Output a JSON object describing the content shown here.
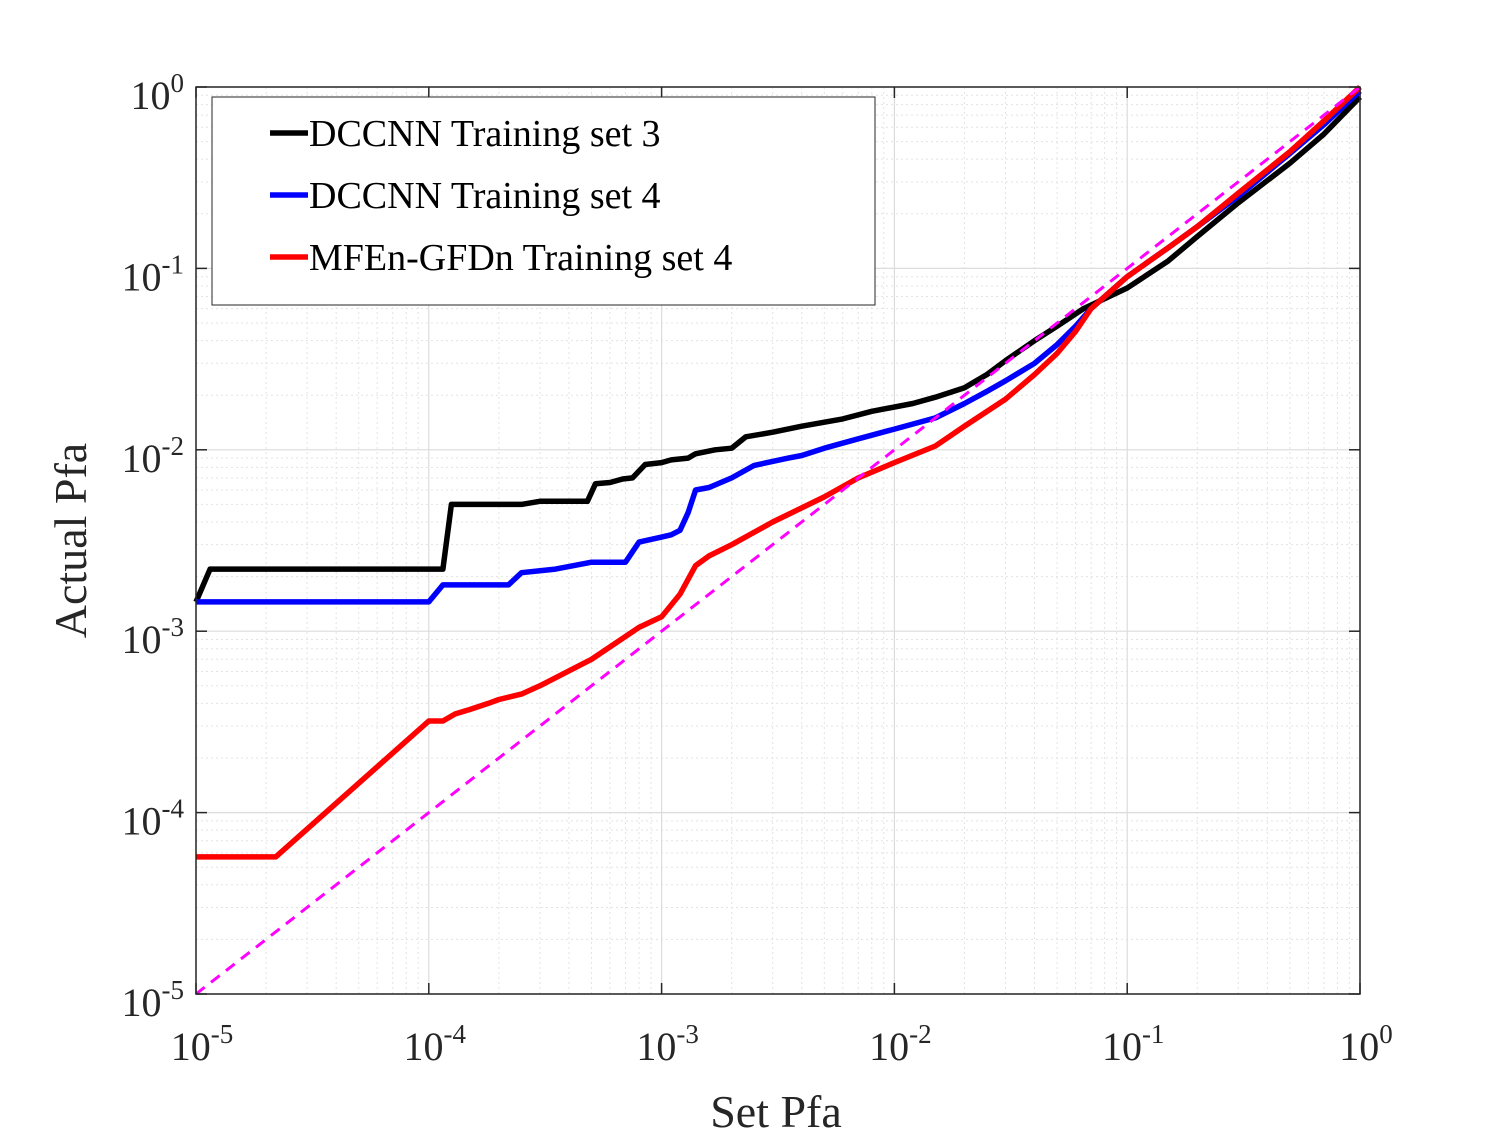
{
  "chart_data": {
    "type": "line",
    "xlabel": "Set Pfa",
    "ylabel": "Actual Pfa",
    "xscale": "log",
    "yscale": "log",
    "xlim": [
      1e-05,
      1
    ],
    "ylim": [
      1e-05,
      1
    ],
    "grid": true,
    "legend_position": "top-left",
    "x_ticks": [
      {
        "base": "10",
        "exp": "-5",
        "value": 1e-05
      },
      {
        "base": "10",
        "exp": "-4",
        "value": 0.0001
      },
      {
        "base": "10",
        "exp": "-3",
        "value": 0.001
      },
      {
        "base": "10",
        "exp": "-2",
        "value": 0.01
      },
      {
        "base": "10",
        "exp": "-1",
        "value": 0.1
      },
      {
        "base": "10",
        "exp": "0",
        "value": 1
      }
    ],
    "y_ticks": [
      {
        "base": "10",
        "exp": "-5",
        "value": 1e-05
      },
      {
        "base": "10",
        "exp": "-4",
        "value": 0.0001
      },
      {
        "base": "10",
        "exp": "-3",
        "value": 0.001
      },
      {
        "base": "10",
        "exp": "-2",
        "value": 0.01
      },
      {
        "base": "10",
        "exp": "-1",
        "value": 0.1
      },
      {
        "base": "10",
        "exp": "0",
        "value": 1
      }
    ],
    "series": [
      {
        "name": "DCCNN Training set 3",
        "color": "#000000",
        "points": [
          [
            1e-05,
            0.00145
          ],
          [
            1.15e-05,
            0.0022
          ],
          [
            0.000115,
            0.0022
          ],
          [
            0.000125,
            0.005
          ],
          [
            0.00025,
            0.005
          ],
          [
            0.0003,
            0.0052
          ],
          [
            0.00048,
            0.0052
          ],
          [
            0.00052,
            0.0065
          ],
          [
            0.0006,
            0.0066
          ],
          [
            0.00068,
            0.0069
          ],
          [
            0.00075,
            0.007
          ],
          [
            0.00085,
            0.0083
          ],
          [
            0.001,
            0.0085
          ],
          [
            0.0011,
            0.0088
          ],
          [
            0.0013,
            0.009
          ],
          [
            0.0014,
            0.0095
          ],
          [
            0.0017,
            0.01
          ],
          [
            0.002,
            0.0102
          ],
          [
            0.0023,
            0.0118
          ],
          [
            0.003,
            0.0125
          ],
          [
            0.004,
            0.0135
          ],
          [
            0.006,
            0.0148
          ],
          [
            0.008,
            0.0163
          ],
          [
            0.012,
            0.018
          ],
          [
            0.015,
            0.0195
          ],
          [
            0.02,
            0.022
          ],
          [
            0.025,
            0.026
          ],
          [
            0.03,
            0.031
          ],
          [
            0.04,
            0.04
          ],
          [
            0.05,
            0.048
          ],
          [
            0.065,
            0.06
          ],
          [
            0.1,
            0.078
          ],
          [
            0.15,
            0.11
          ],
          [
            0.2,
            0.15
          ],
          [
            0.3,
            0.23
          ],
          [
            0.5,
            0.38
          ],
          [
            0.7,
            0.55
          ],
          [
            1,
            0.88
          ]
        ]
      },
      {
        "name": "DCCNN Training set 4",
        "color": "#0000ff",
        "points": [
          [
            1e-05,
            0.00145
          ],
          [
            0.0001,
            0.00145
          ],
          [
            0.000115,
            0.0018
          ],
          [
            0.00022,
            0.0018
          ],
          [
            0.00025,
            0.0021
          ],
          [
            0.00035,
            0.0022
          ],
          [
            0.00042,
            0.0023
          ],
          [
            0.0005,
            0.0024
          ],
          [
            0.0007,
            0.0024
          ],
          [
            0.0008,
            0.0031
          ],
          [
            0.001,
            0.0033
          ],
          [
            0.0011,
            0.0034
          ],
          [
            0.0012,
            0.0036
          ],
          [
            0.0013,
            0.0045
          ],
          [
            0.0014,
            0.006
          ],
          [
            0.0016,
            0.0062
          ],
          [
            0.002,
            0.007
          ],
          [
            0.0025,
            0.0082
          ],
          [
            0.0035,
            0.009
          ],
          [
            0.004,
            0.0093
          ],
          [
            0.005,
            0.0102
          ],
          [
            0.007,
            0.0115
          ],
          [
            0.01,
            0.013
          ],
          [
            0.015,
            0.015
          ],
          [
            0.02,
            0.018
          ],
          [
            0.025,
            0.021
          ],
          [
            0.03,
            0.024
          ],
          [
            0.04,
            0.03
          ],
          [
            0.05,
            0.038
          ],
          [
            0.06,
            0.048
          ],
          [
            0.07,
            0.06
          ],
          [
            0.1,
            0.09
          ],
          [
            0.15,
            0.13
          ],
          [
            0.2,
            0.17
          ],
          [
            0.3,
            0.25
          ],
          [
            0.5,
            0.43
          ],
          [
            0.7,
            0.62
          ],
          [
            1,
            0.95
          ]
        ]
      },
      {
        "name": "MFEn-GFDn Training set 4",
        "color": "#ff0000",
        "points": [
          [
            1e-05,
            5.7e-05
          ],
          [
            2.2e-05,
            5.7e-05
          ],
          [
            0.0001,
            0.00032
          ],
          [
            0.000115,
            0.00032
          ],
          [
            0.00013,
            0.00035
          ],
          [
            0.00015,
            0.00037
          ],
          [
            0.00018,
            0.0004
          ],
          [
            0.0002,
            0.00042
          ],
          [
            0.00025,
            0.00045
          ],
          [
            0.0003,
            0.0005
          ],
          [
            0.0005,
            0.0007
          ],
          [
            0.0008,
            0.00105
          ],
          [
            0.001,
            0.0012
          ],
          [
            0.0012,
            0.0016
          ],
          [
            0.0014,
            0.0023
          ],
          [
            0.0016,
            0.0026
          ],
          [
            0.002,
            0.003
          ],
          [
            0.003,
            0.004
          ],
          [
            0.005,
            0.0055
          ],
          [
            0.007,
            0.007
          ],
          [
            0.01,
            0.0085
          ],
          [
            0.015,
            0.0105
          ],
          [
            0.02,
            0.0135
          ],
          [
            0.03,
            0.019
          ],
          [
            0.04,
            0.026
          ],
          [
            0.05,
            0.034
          ],
          [
            0.06,
            0.045
          ],
          [
            0.07,
            0.06
          ],
          [
            0.1,
            0.09
          ],
          [
            0.15,
            0.13
          ],
          [
            0.2,
            0.17
          ],
          [
            0.3,
            0.26
          ],
          [
            0.5,
            0.44
          ],
          [
            0.7,
            0.65
          ],
          [
            1,
            1
          ]
        ]
      },
      {
        "color": "#ff00ff",
        "style": "dashed",
        "points": [
          [
            1e-05,
            1e-05
          ],
          [
            1,
            1
          ]
        ]
      }
    ]
  }
}
